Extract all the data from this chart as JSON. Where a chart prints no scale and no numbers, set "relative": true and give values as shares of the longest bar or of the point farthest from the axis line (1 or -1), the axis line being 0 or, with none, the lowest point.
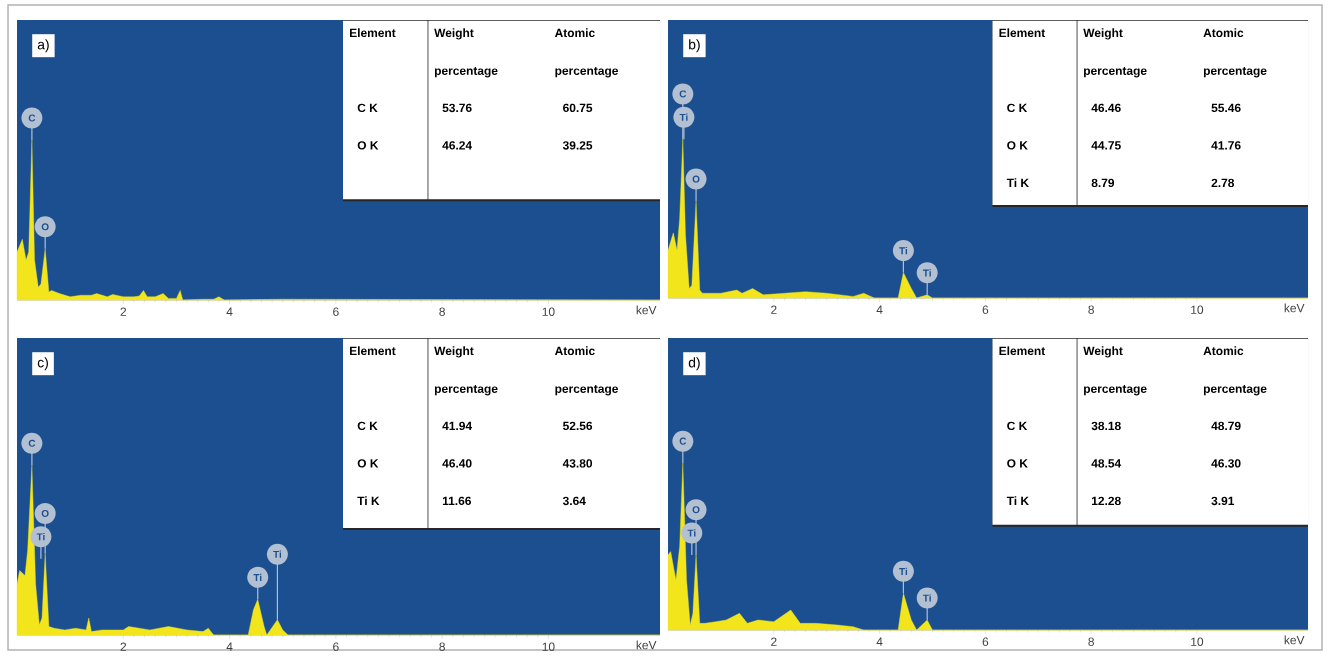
{
  "chart_data": [
    {
      "type": "area",
      "title": "a)",
      "xlabel": "keV",
      "relative": true,
      "color": "#f2e51c",
      "xlim": [
        0,
        12.1
      ],
      "xticks": [
        2,
        4,
        6,
        8,
        10
      ],
      "x": [
        0.0,
        0.1,
        0.17,
        0.22,
        0.28,
        0.33,
        0.4,
        0.45,
        0.53,
        0.6,
        0.65,
        0.8,
        1.0,
        1.2,
        1.4,
        1.5,
        1.7,
        1.8,
        2.0,
        2.2,
        2.3,
        2.38,
        2.45,
        2.6,
        2.75,
        2.85,
        3.0,
        3.07,
        3.12,
        3.5,
        3.7,
        3.8,
        3.9,
        5.0,
        12.1
      ],
      "values": [
        0.3,
        0.38,
        0.25,
        0.3,
        1.0,
        0.25,
        0.08,
        0.1,
        0.32,
        0.05,
        0.06,
        0.04,
        0.02,
        0.03,
        0.03,
        0.04,
        0.02,
        0.035,
        0.02,
        0.02,
        0.025,
        0.06,
        0.02,
        0.02,
        0.04,
        0.01,
        0.01,
        0.06,
        0.0,
        0.005,
        0.005,
        0.02,
        0.0,
        0.005,
        0.0
      ],
      "annotations": [
        "Element",
        "Weight percentage",
        "Atomic percentage",
        "C K",
        "53.76",
        "60.75",
        "O K",
        "46.24",
        "39.25",
        {
          "text": "O",
          "x": 0.53,
          "y": 0.32
        },
        {
          "text": "C",
          "x": 0.28,
          "y": 1.0
        }
      ]
    },
    {
      "type": "area",
      "title": "b)",
      "xlabel": "keV",
      "relative": true,
      "color": "#f2e51c",
      "xlim": [
        0,
        12.1
      ],
      "xticks": [
        2,
        4,
        6,
        8,
        10
      ],
      "x": [
        0.0,
        0.1,
        0.17,
        0.22,
        0.28,
        0.33,
        0.4,
        0.45,
        0.53,
        0.6,
        0.65,
        0.8,
        1.0,
        1.3,
        1.4,
        1.6,
        1.8,
        2.2,
        2.6,
        3.0,
        3.5,
        3.7,
        3.9,
        4.35,
        4.45,
        4.6,
        4.7,
        4.9,
        5.0,
        12.1
      ],
      "values": [
        0.3,
        0.41,
        0.3,
        0.5,
        1.0,
        0.4,
        0.06,
        0.08,
        0.61,
        0.05,
        0.03,
        0.03,
        0.03,
        0.05,
        0.03,
        0.06,
        0.02,
        0.03,
        0.04,
        0.03,
        0.01,
        0.03,
        0.0,
        0.0,
        0.16,
        0.06,
        0.0,
        0.02,
        0.0,
        0.0
      ],
      "annotations": [
        "Element",
        "Weight percentage",
        "Atomic percentage",
        "C K",
        "46.46",
        "55.46",
        "O K",
        "44.75",
        "41.76",
        "Ti K",
        "8.79",
        "2.78",
        {
          "text": "O",
          "x": 0.53,
          "y": 0.61
        },
        {
          "text": "Ti",
          "x": 0.3,
          "y": 1.0
        },
        {
          "text": "C",
          "x": 0.28,
          "y": 1.0
        },
        {
          "text": "Ti",
          "x": 4.45,
          "y": 0.16
        },
        {
          "text": "Ti",
          "x": 4.9,
          "y": 0.02
        }
      ]
    },
    {
      "type": "area",
      "title": "c)",
      "xlabel": "keV",
      "relative": true,
      "color": "#f2e51c",
      "xlim": [
        0,
        12.1
      ],
      "xticks": [
        2,
        4,
        6,
        8,
        10
      ],
      "x": [
        0.0,
        0.05,
        0.15,
        0.2,
        0.28,
        0.35,
        0.42,
        0.47,
        0.53,
        0.6,
        0.7,
        0.9,
        1.1,
        1.3,
        1.35,
        1.4,
        1.6,
        2.0,
        2.1,
        2.5,
        2.85,
        3.2,
        3.5,
        3.6,
        3.7,
        4.35,
        4.45,
        4.53,
        4.65,
        4.7,
        4.9,
        5.0,
        5.1,
        12.1
      ],
      "values": [
        0.3,
        0.38,
        0.35,
        0.5,
        1.0,
        0.3,
        0.06,
        0.1,
        0.48,
        0.05,
        0.04,
        0.03,
        0.04,
        0.03,
        0.1,
        0.02,
        0.03,
        0.03,
        0.05,
        0.03,
        0.05,
        0.03,
        0.02,
        0.04,
        0.0,
        0.0,
        0.15,
        0.21,
        0.05,
        0.0,
        0.09,
        0.03,
        0.0,
        0.0
      ],
      "annotations": [
        "Element",
        "Weight percentage",
        "Atomic percentage",
        "C K",
        "41.94",
        "52.56",
        "O K",
        "46.40",
        "43.80",
        "Ti K",
        "11.66",
        "3.64",
        {
          "text": "Ti",
          "x": 0.45,
          "y": 0.45
        },
        {
          "text": "O",
          "x": 0.53,
          "y": 0.48
        },
        {
          "text": "C",
          "x": 0.28,
          "y": 1.0
        },
        {
          "text": "Ti",
          "x": 4.53,
          "y": 0.21
        },
        {
          "text": "Ti",
          "x": 4.9,
          "y": 0.09
        }
      ]
    },
    {
      "type": "area",
      "title": "d)",
      "xlabel": "keV",
      "relative": true,
      "color": "#f2e51c",
      "xlim": [
        0,
        12.1
      ],
      "xticks": [
        2,
        4,
        6,
        8,
        10
      ],
      "x": [
        0.0,
        0.05,
        0.15,
        0.22,
        0.28,
        0.35,
        0.42,
        0.47,
        0.53,
        0.6,
        0.7,
        0.9,
        1.1,
        1.35,
        1.5,
        1.7,
        2.0,
        2.32,
        2.5,
        2.8,
        3.2,
        3.5,
        3.7,
        4.35,
        4.45,
        4.6,
        4.7,
        4.9,
        5.0,
        12.1
      ],
      "values": [
        0.45,
        0.47,
        0.3,
        0.5,
        1.0,
        0.3,
        0.03,
        0.1,
        0.45,
        0.04,
        0.04,
        0.05,
        0.06,
        0.1,
        0.04,
        0.06,
        0.05,
        0.12,
        0.04,
        0.04,
        0.03,
        0.02,
        0.0,
        0.0,
        0.22,
        0.06,
        0.0,
        0.06,
        0.0,
        0.0
      ],
      "annotations": [
        "Element",
        "Weight percentage",
        "Atomic percentage",
        "C K",
        "38.18",
        "48.79",
        "O K",
        "48.54",
        "46.30",
        "Ti K",
        "12.28",
        "3.91",
        {
          "text": "Ti",
          "x": 0.45,
          "y": 0.45
        },
        {
          "text": "O",
          "x": 0.53,
          "y": 0.45
        },
        {
          "text": "C",
          "x": 0.28,
          "y": 1.0
        },
        {
          "text": "Ti",
          "x": 4.45,
          "y": 0.22
        },
        {
          "text": "Ti",
          "x": 4.9,
          "y": 0.06
        }
      ]
    }
  ]
}
